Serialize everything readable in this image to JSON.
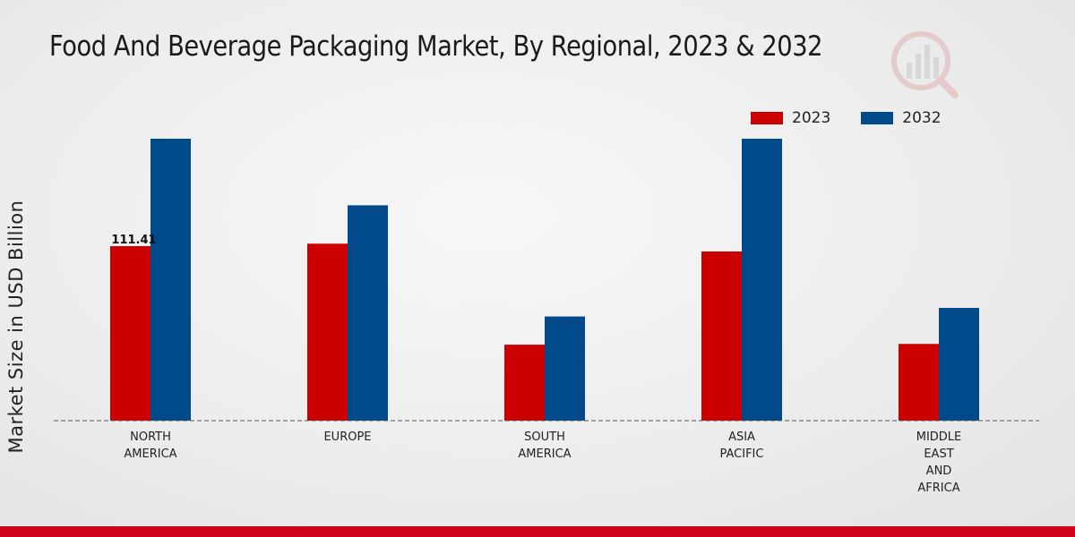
{
  "title": "Food And Beverage Packaging Market, By Regional, 2023 & 2032",
  "colors": {
    "series_2023": "#cc0000",
    "series_2032": "#004a8c",
    "accent_bar": "#d0021b"
  },
  "logo_icon": "market-research-logo-icon",
  "chart_data": {
    "type": "bar",
    "title": "Food And Beverage Packaging Market, By Regional, 2023 & 2032",
    "xlabel": "",
    "ylabel": "Market Size in USD Billion",
    "categories": [
      "NORTH\nAMERICA",
      "EUROPE",
      "SOUTH\nAMERICA",
      "ASIA\nPACIFIC",
      "MIDDLE\nEAST\nAND\nAFRICA"
    ],
    "series": [
      {
        "name": "2023",
        "values": [
          111.41,
          113.0,
          48.5,
          108.0,
          49.0
        ]
      },
      {
        "name": "2032",
        "values": [
          180.0,
          137.5,
          66.5,
          180.0,
          72.0
        ]
      }
    ],
    "data_labels": [
      {
        "series": "2023",
        "category_index": 0,
        "text": "111.41"
      }
    ],
    "ylim": [
      0,
      200
    ],
    "legend": "top-right",
    "grid": false
  }
}
